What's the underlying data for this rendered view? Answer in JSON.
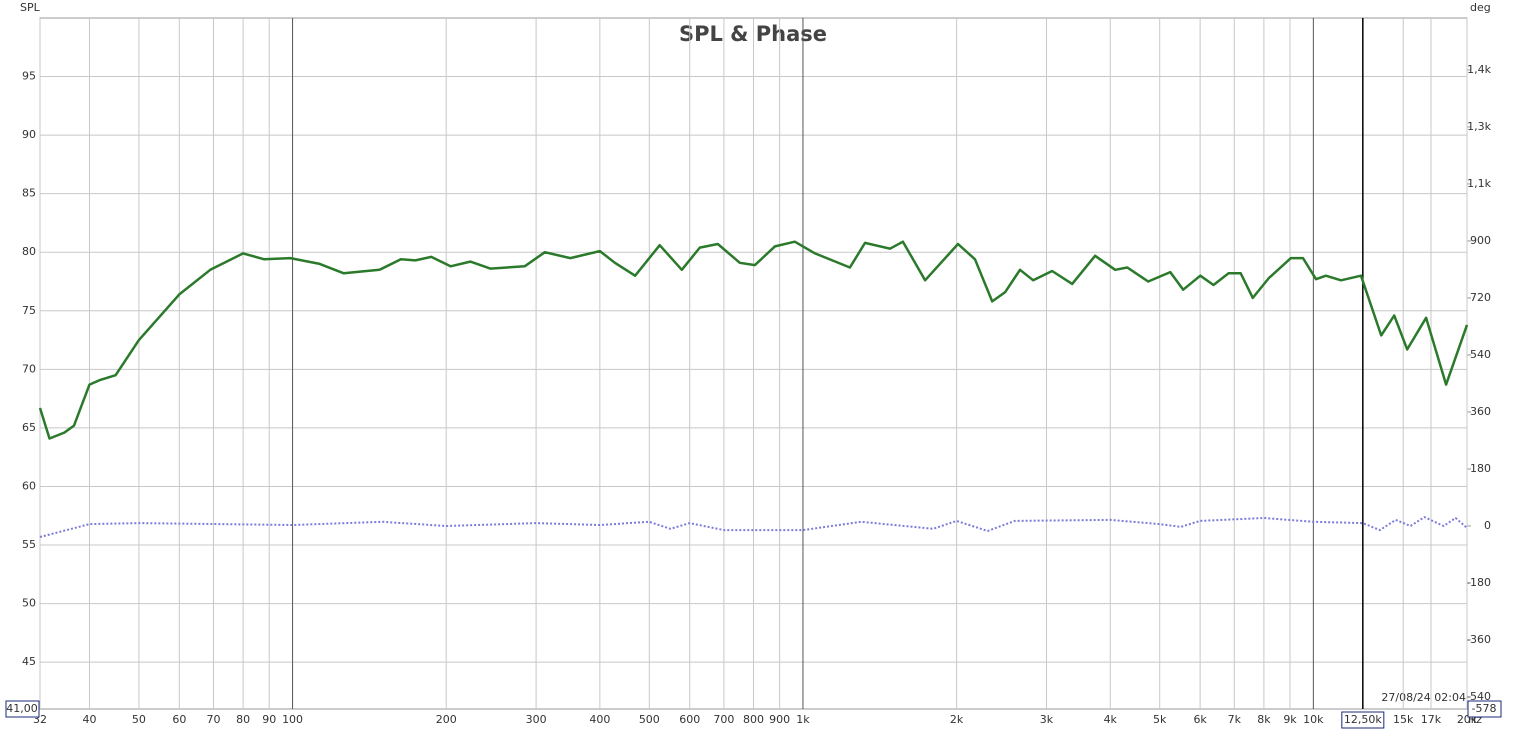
{
  "chart_data": {
    "type": "line",
    "title": "SPL & Phase",
    "y_label": "SPL",
    "y2_label": "deg",
    "x_unit": "Hz",
    "x_scale": "log",
    "grid": true,
    "timestamp": "27/08/24 02:04",
    "y_min_label": "41,00",
    "y2_min_label": "-578",
    "cursor": {
      "value": 12500,
      "label": "12,50k"
    },
    "xlim": [
      32,
      20000
    ],
    "ylim": [
      41,
      100
    ],
    "y2lim": [
      -578,
      1604
    ],
    "xticks": [
      32,
      40,
      50,
      60,
      70,
      80,
      90,
      100,
      200,
      300,
      400,
      500,
      600,
      700,
      800,
      900,
      {
        "value": 1000,
        "label": "1k"
      },
      {
        "value": 2000,
        "label": "2k"
      },
      {
        "value": 3000,
        "label": "3k"
      },
      {
        "value": 4000,
        "label": "4k"
      },
      {
        "value": 5000,
        "label": "5k"
      },
      {
        "value": 6000,
        "label": "6k"
      },
      {
        "value": 7000,
        "label": "7k"
      },
      {
        "value": 8000,
        "label": "8k"
      },
      {
        "value": 9000,
        "label": "9k"
      },
      {
        "value": 10000,
        "label": "10k"
      },
      {
        "value": 15000,
        "label": "15k"
      },
      {
        "value": 17000,
        "label": "17k"
      },
      {
        "value": 20000,
        "label": "20k"
      }
    ],
    "yticks": [
      45,
      50,
      55,
      60,
      65,
      70,
      75,
      80,
      85,
      90,
      95
    ],
    "y2ticks": [
      -540,
      -360,
      -180,
      0,
      180,
      360,
      540,
      720,
      900,
      {
        "value": 1080,
        "label": "1,1k"
      },
      {
        "value": 1260,
        "label": "1,3k"
      },
      {
        "value": 1440,
        "label": "1,4k"
      }
    ],
    "series": [
      {
        "name": "SPL",
        "color": "#2b7a2b",
        "axis": "y",
        "x": [
          32,
          33.4,
          35.7,
          37.3,
          40,
          42,
          45,
          50,
          60,
          69,
          80,
          88,
          99,
          113,
          126,
          148,
          163,
          174,
          187,
          204,
          223,
          244,
          285,
          312,
          350,
          400,
          428,
          469,
          524,
          579,
          628,
          681,
          752,
          805,
          881,
          964,
          1056,
          1236,
          1323,
          1481,
          1570,
          1735,
          2013,
          2173,
          2348,
          2490,
          2662,
          2825,
          3077,
          3369,
          3735,
          4090,
          4319,
          4748,
          5245,
          5559,
          6005,
          6372,
          6820,
          7205,
          7610,
          8182,
          9037,
          9545,
          10120,
          10580,
          11330,
          12400,
          13580,
          14400,
          15270,
          16630,
          18200,
          20000
        ],
        "values": [
          66.7,
          64.1,
          64.6,
          65.2,
          68.7,
          69.1,
          69.5,
          72.5,
          76.4,
          78.5,
          79.9,
          79.4,
          79.5,
          79.0,
          78.2,
          78.5,
          79.4,
          79.3,
          79.6,
          78.8,
          79.2,
          78.6,
          78.8,
          80.0,
          79.5,
          80.1,
          79.1,
          78.0,
          80.6,
          78.5,
          80.4,
          80.7,
          79.1,
          78.9,
          80.5,
          80.9,
          79.9,
          78.7,
          80.8,
          80.3,
          80.9,
          77.6,
          80.7,
          79.4,
          75.8,
          76.6,
          78.5,
          77.6,
          78.4,
          77.3,
          79.7,
          78.5,
          78.7,
          77.5,
          78.3,
          76.8,
          78.0,
          77.2,
          78.2,
          78.2,
          76.1,
          77.8,
          79.5,
          79.5,
          77.7,
          78.0,
          77.6,
          78.0,
          72.9,
          74.6,
          71.7,
          74.4,
          68.7,
          73.8
        ]
      },
      {
        "name": "Phase",
        "color": "#7b7bd8",
        "axis": "y2",
        "dash": true,
        "x": [
          32,
          40,
          50,
          100,
          150,
          200,
          300,
          400,
          500,
          550,
          600,
          700,
          1000,
          1300,
          1800,
          2000,
          2300,
          2600,
          4000,
          5000,
          5500,
          6000,
          8000,
          10000,
          12500,
          13500,
          14500,
          15500,
          16500,
          18000,
          19000,
          20000
        ],
        "values": [
          -35,
          6,
          9,
          3,
          13,
          0,
          9,
          3,
          13,
          -9,
          9,
          -13,
          -13,
          13,
          -9,
          16,
          -16,
          16,
          19,
          6,
          -3,
          16,
          25,
          13,
          9,
          -13,
          19,
          0,
          28,
          0,
          25,
          -6
        ]
      }
    ]
  }
}
